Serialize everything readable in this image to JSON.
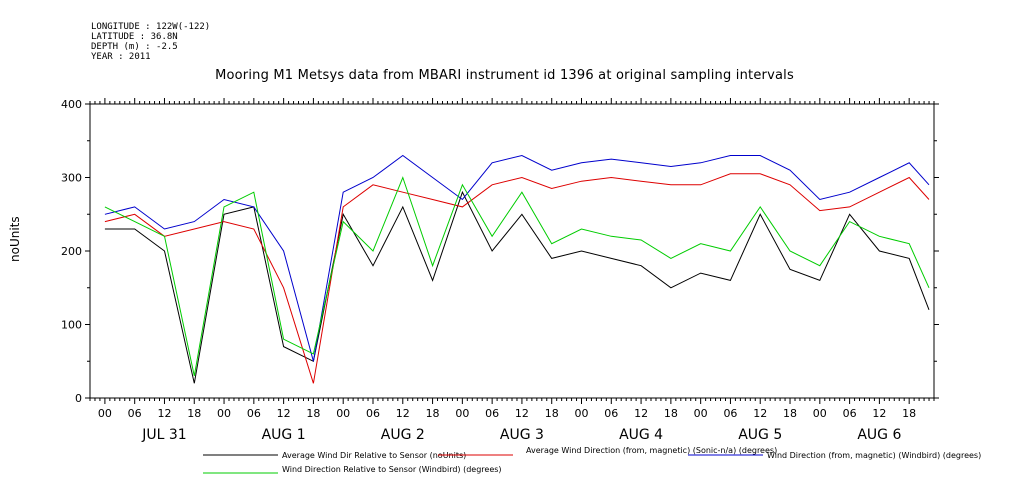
{
  "header": {
    "longitude": "LONGITUDE : 122W(-122)",
    "latitude": "LATITUDE : 36.8N",
    "depth": "DEPTH (m) : -2.5",
    "year": "YEAR : 2011"
  },
  "chart_data": {
    "type": "line",
    "title": "Mooring M1 Metsys data from MBARI instrument id 1396 at original sampling intervals",
    "ylabel": "noUnits",
    "xlabel": "",
    "ylim": [
      0,
      400
    ],
    "yticks": [
      0,
      100,
      200,
      300,
      400
    ],
    "xlim_hours": [
      -3,
      167
    ],
    "hour_tick_labels": [
      "00",
      "06",
      "12",
      "18",
      "00",
      "06",
      "12",
      "18",
      "00",
      "06",
      "12",
      "18",
      "00",
      "06",
      "12",
      "18",
      "00",
      "06",
      "12",
      "18",
      "00",
      "06",
      "12",
      "18",
      "00",
      "06",
      "12",
      "18"
    ],
    "day_labels": [
      "JUL 31",
      "AUG  1",
      "AUG  2",
      "AUG  3",
      "AUG  4",
      "AUG  5",
      "AUG  6"
    ],
    "grid": false,
    "legend_placement": "bottom",
    "series": [
      {
        "name": "Average Wind Dir Relative to Sensor (noUnits)",
        "color": "#000000",
        "x": [
          0,
          6,
          12,
          18,
          24,
          30,
          36,
          42,
          48,
          54,
          60,
          66,
          72,
          78,
          84,
          90,
          96,
          102,
          108,
          114,
          120,
          126,
          132,
          138,
          144,
          150,
          156,
          162,
          166
        ],
        "values": [
          230,
          230,
          200,
          20,
          250,
          260,
          70,
          50,
          250,
          180,
          260,
          160,
          280,
          200,
          250,
          190,
          200,
          190,
          180,
          150,
          170,
          160,
          250,
          175,
          160,
          250,
          200,
          190,
          120
        ]
      },
      {
        "name": "Average Wind Direction (from, magnetic) (Sonic-n/a) (degrees)",
        "color": "#dd0000",
        "x": [
          0,
          6,
          12,
          18,
          24,
          30,
          36,
          42,
          48,
          54,
          60,
          66,
          72,
          78,
          84,
          90,
          96,
          102,
          108,
          114,
          120,
          126,
          132,
          138,
          144,
          150,
          156,
          162,
          166
        ],
        "values": [
          240,
          250,
          220,
          230,
          240,
          230,
          150,
          20,
          260,
          290,
          280,
          270,
          260,
          290,
          300,
          285,
          295,
          300,
          295,
          290,
          290,
          305,
          305,
          290,
          255,
          260,
          280,
          300,
          270
        ]
      },
      {
        "name": "Wind Direction (from, magnetic) (Windbird) (degrees)",
        "color": "#0000cc",
        "x": [
          0,
          6,
          12,
          18,
          24,
          30,
          36,
          42,
          48,
          54,
          60,
          66,
          72,
          78,
          84,
          90,
          96,
          102,
          108,
          114,
          120,
          126,
          132,
          138,
          144,
          150,
          156,
          162,
          166
        ],
        "values": [
          250,
          260,
          230,
          240,
          270,
          260,
          200,
          50,
          280,
          300,
          330,
          300,
          270,
          320,
          330,
          310,
          320,
          325,
          320,
          315,
          320,
          330,
          330,
          310,
          270,
          280,
          300,
          320,
          290
        ]
      },
      {
        "name": "Wind Direction Relative to Sensor (Windbird) (degrees)",
        "color": "#00cc00",
        "x": [
          0,
          6,
          12,
          18,
          24,
          30,
          36,
          42,
          48,
          54,
          60,
          66,
          72,
          78,
          84,
          90,
          96,
          102,
          108,
          114,
          120,
          126,
          132,
          138,
          144,
          150,
          156,
          162,
          166
        ],
        "values": [
          260,
          240,
          220,
          30,
          260,
          280,
          80,
          60,
          240,
          200,
          300,
          180,
          290,
          220,
          280,
          210,
          230,
          220,
          215,
          190,
          210,
          200,
          260,
          200,
          180,
          240,
          220,
          210,
          150
        ]
      }
    ]
  }
}
